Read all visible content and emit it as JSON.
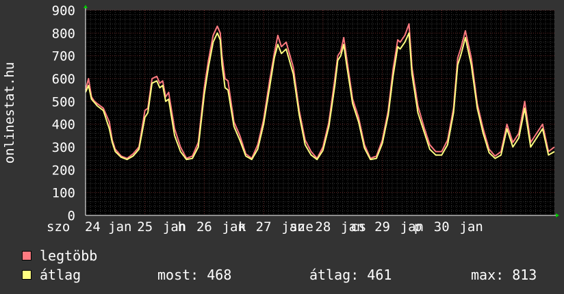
{
  "chart_data": {
    "type": "line",
    "ylabel": "onlinestat.hu",
    "ylim": [
      0,
      900
    ],
    "yticks": [
      0,
      100,
      200,
      300,
      400,
      500,
      600,
      700,
      800,
      900
    ],
    "grid": true,
    "xlim": [
      0,
      7.9
    ],
    "xticks": [
      {
        "x": 0.0,
        "label": "szo"
      },
      {
        "x": 0.12,
        "label": "24"
      },
      {
        "x": 0.58,
        "label": "jan"
      },
      {
        "x": 1.0,
        "label": "25"
      },
      {
        "x": 1.5,
        "label": "jan"
      },
      {
        "x": 1.62,
        "label": "h"
      },
      {
        "x": 2.0,
        "label": "26"
      },
      {
        "x": 2.5,
        "label": "jan"
      },
      {
        "x": 2.64,
        "label": "k"
      },
      {
        "x": 3.0,
        "label": "27"
      },
      {
        "x": 3.5,
        "label": "jan"
      },
      {
        "x": 3.64,
        "label": "sze"
      },
      {
        "x": 4.0,
        "label": "28"
      },
      {
        "x": 4.5,
        "label": "jan"
      },
      {
        "x": 4.6,
        "label": "cs"
      },
      {
        "x": 5.0,
        "label": "29"
      },
      {
        "x": 5.5,
        "label": "jan"
      },
      {
        "x": 5.6,
        "label": "p"
      },
      {
        "x": 6.0,
        "label": "30"
      },
      {
        "x": 6.5,
        "label": "jan"
      }
    ],
    "series": [
      {
        "name": "legtöbb",
        "color": "#ff7a80",
        "x": [
          0,
          0.05,
          0.1,
          0.15,
          0.2,
          0.3,
          0.4,
          0.45,
          0.5,
          0.6,
          0.7,
          0.8,
          0.9,
          1.0,
          1.05,
          1.12,
          1.2,
          1.25,
          1.3,
          1.35,
          1.4,
          1.45,
          1.5,
          1.6,
          1.7,
          1.8,
          1.9,
          2.0,
          2.07,
          2.15,
          2.22,
          2.27,
          2.3,
          2.35,
          2.4,
          2.5,
          2.6,
          2.7,
          2.8,
          2.9,
          3.0,
          3.1,
          3.18,
          3.24,
          3.3,
          3.38,
          3.5,
          3.6,
          3.7,
          3.8,
          3.9,
          4.0,
          4.1,
          4.2,
          4.25,
          4.3,
          4.35,
          4.4,
          4.5,
          4.6,
          4.7,
          4.8,
          4.9,
          5.0,
          5.1,
          5.18,
          5.26,
          5.3,
          5.38,
          5.45,
          5.5,
          5.6,
          5.7,
          5.8,
          5.9,
          6.0,
          6.1,
          6.2,
          6.27,
          6.33,
          6.4,
          6.5,
          6.6,
          6.7,
          6.8,
          6.9,
          7.0,
          7.1,
          7.2,
          7.3,
          7.4,
          7.5,
          7.6,
          7.7,
          7.8,
          7.9
        ],
        "values": [
          550,
          600,
          520,
          500,
          490,
          470,
          410,
          330,
          290,
          260,
          250,
          270,
          300,
          460,
          470,
          600,
          610,
          580,
          590,
          520,
          540,
          460,
          380,
          300,
          250,
          260,
          320,
          560,
          680,
          790,
          830,
          800,
          700,
          600,
          590,
          410,
          350,
          270,
          250,
          310,
          420,
          590,
          710,
          790,
          740,
          760,
          650,
          460,
          330,
          280,
          250,
          300,
          410,
          600,
          700,
          720,
          780,
          690,
          510,
          430,
          310,
          250,
          260,
          330,
          460,
          640,
          770,
          760,
          790,
          840,
          650,
          480,
          390,
          310,
          280,
          280,
          330,
          470,
          690,
          740,
          810,
          690,
          490,
          380,
          290,
          260,
          280,
          400,
          320,
          360,
          500,
          320,
          360,
          400,
          280,
          300
        ]
      },
      {
        "name": "átlag",
        "color": "#ffff80",
        "x": [
          0,
          0.05,
          0.1,
          0.15,
          0.2,
          0.3,
          0.4,
          0.45,
          0.5,
          0.6,
          0.7,
          0.8,
          0.9,
          1.0,
          1.05,
          1.12,
          1.2,
          1.25,
          1.3,
          1.35,
          1.4,
          1.45,
          1.5,
          1.6,
          1.7,
          1.8,
          1.9,
          2.0,
          2.07,
          2.15,
          2.22,
          2.27,
          2.3,
          2.35,
          2.4,
          2.5,
          2.6,
          2.7,
          2.8,
          2.9,
          3.0,
          3.1,
          3.18,
          3.24,
          3.3,
          3.38,
          3.5,
          3.6,
          3.7,
          3.8,
          3.9,
          4.0,
          4.1,
          4.2,
          4.25,
          4.3,
          4.35,
          4.4,
          4.5,
          4.6,
          4.7,
          4.8,
          4.9,
          5.0,
          5.1,
          5.18,
          5.26,
          5.3,
          5.38,
          5.45,
          5.5,
          5.6,
          5.7,
          5.8,
          5.9,
          6.0,
          6.1,
          6.2,
          6.27,
          6.33,
          6.4,
          6.5,
          6.6,
          6.7,
          6.8,
          6.9,
          7.0,
          7.1,
          7.2,
          7.3,
          7.4,
          7.5,
          7.6,
          7.7,
          7.8,
          7.9
        ],
        "values": [
          540,
          570,
          510,
          495,
          480,
          460,
          380,
          320,
          280,
          255,
          245,
          260,
          290,
          430,
          450,
          580,
          590,
          560,
          570,
          500,
          510,
          430,
          350,
          280,
          245,
          250,
          300,
          530,
          650,
          760,
          800,
          770,
          660,
          560,
          550,
          390,
          330,
          260,
          245,
          290,
          400,
          560,
          690,
          750,
          710,
          730,
          620,
          440,
          310,
          265,
          245,
          285,
          390,
          570,
          680,
          700,
          750,
          660,
          490,
          410,
          295,
          245,
          250,
          315,
          440,
          610,
          740,
          730,
          760,
          800,
          620,
          450,
          370,
          290,
          265,
          265,
          310,
          450,
          660,
          710,
          780,
          660,
          470,
          360,
          275,
          250,
          265,
          380,
          300,
          340,
          470,
          300,
          340,
          380,
          265,
          280
        ]
      }
    ]
  },
  "legend": {
    "items": [
      {
        "label": "legtöbb",
        "color": "#ff7a80"
      },
      {
        "label": "átlag",
        "color": "#ffff80"
      }
    ],
    "stats": {
      "most": "most: 468",
      "atlag": "átlag: 461",
      "max": "max: 813"
    }
  }
}
